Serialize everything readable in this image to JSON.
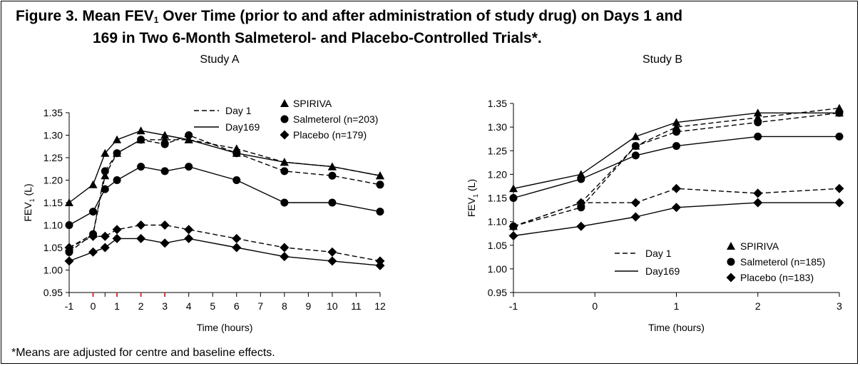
{
  "figure": {
    "title_prefix": "Figure 3. Mean FEV",
    "title_sub": "1",
    "title_line1_rest": " Over Time (prior to and after administration of study drug) on Days 1 and",
    "title_line2": "169 in Two 6-Month Salmeterol- and Placebo-Controlled Trials*.",
    "footnote": "*Means are adjusted for centre and baseline effects."
  },
  "chart_data": [
    {
      "type": "line",
      "title": "Study A",
      "xlabel": "Time (hours)",
      "ylabel": "FEV",
      "ylabel_sub": "1",
      "ylabel_unit": " (L)",
      "xlim": [
        -1,
        12
      ],
      "ylim": [
        0.95,
        1.35
      ],
      "x_ticks": [
        -1,
        0,
        1,
        2,
        3,
        4,
        5,
        6,
        7,
        8,
        9,
        10,
        11,
        12
      ],
      "y_ticks": [
        "0.95",
        "1.00",
        "1.05",
        "1.10",
        "1.15",
        "1.20",
        "1.25",
        "1.30",
        "1.35"
      ],
      "grid": false,
      "line_legend": [
        {
          "label": "Day 1",
          "style": "dashed"
        },
        {
          "label": "Day169",
          "style": "solid"
        }
      ],
      "marker_legend": [
        {
          "label": "SPIRIVA",
          "marker": "triangle"
        },
        {
          "label": "Salmeterol (n=203)",
          "marker": "circle"
        },
        {
          "label": "Placebo (n=179)",
          "marker": "diamond"
        }
      ],
      "series": [
        {
          "name": "SPIRIVA",
          "day": "Day 1",
          "style": "dashed",
          "marker": "triangle",
          "x": [
            -1,
            0,
            0.5,
            1,
            2,
            3,
            4,
            6,
            8,
            10,
            12
          ],
          "y": [
            1.05,
            1.08,
            1.21,
            1.26,
            1.29,
            1.29,
            1.29,
            1.27,
            1.24,
            1.23,
            1.21
          ]
        },
        {
          "name": "SPIRIVA",
          "day": "Day169",
          "style": "solid",
          "marker": "triangle",
          "x": [
            -1,
            0,
            0.5,
            1,
            2,
            3,
            4,
            6,
            8,
            10,
            12
          ],
          "y": [
            1.15,
            1.19,
            1.26,
            1.29,
            1.31,
            1.3,
            1.29,
            1.26,
            1.24,
            1.23,
            1.21
          ]
        },
        {
          "name": "Salmeterol (n=203)",
          "day": "Day 1",
          "style": "dashed",
          "marker": "circle",
          "x": [
            -1,
            0,
            0.5,
            1,
            2,
            3,
            4,
            6,
            8,
            10,
            12
          ],
          "y": [
            1.04,
            1.08,
            1.22,
            1.26,
            1.29,
            1.28,
            1.3,
            1.26,
            1.22,
            1.21,
            1.19
          ]
        },
        {
          "name": "Salmeterol (n=203)",
          "day": "Day169",
          "style": "solid",
          "marker": "circle",
          "x": [
            -1,
            0,
            0.5,
            1,
            2,
            3,
            4,
            6,
            8,
            10,
            12
          ],
          "y": [
            1.1,
            1.13,
            1.18,
            1.2,
            1.23,
            1.22,
            1.23,
            1.2,
            1.15,
            1.15,
            1.13
          ]
        },
        {
          "name": "Placebo (n=179)",
          "day": "Day 1",
          "style": "dashed",
          "marker": "diamond",
          "x": [
            -1,
            0,
            0.5,
            1,
            2,
            3,
            4,
            6,
            8,
            10,
            12
          ],
          "y": [
            1.05,
            1.075,
            1.075,
            1.09,
            1.1,
            1.1,
            1.09,
            1.07,
            1.05,
            1.04,
            1.02
          ]
        },
        {
          "name": "Placebo (n=179)",
          "day": "Day169",
          "style": "solid",
          "marker": "diamond",
          "x": [
            -1,
            0,
            0.5,
            1,
            2,
            3,
            4,
            6,
            8,
            10,
            12
          ],
          "y": [
            1.02,
            1.04,
            1.05,
            1.07,
            1.07,
            1.06,
            1.07,
            1.05,
            1.03,
            1.02,
            1.01
          ]
        }
      ]
    },
    {
      "type": "line",
      "title": "Study B",
      "xlabel": "Time (hours)",
      "ylabel": "FEV",
      "ylabel_sub": "1",
      "ylabel_unit": " (L)",
      "xlim": [
        -1,
        3
      ],
      "ylim": [
        0.95,
        1.35
      ],
      "x_ticks": [
        -1,
        0,
        1,
        2,
        3
      ],
      "y_ticks": [
        "0.95",
        "1.00",
        "1.05",
        "1.10",
        "1.15",
        "1.20",
        "1.25",
        "1.30",
        "1.35"
      ],
      "grid": false,
      "line_legend": [
        {
          "label": "Day 1",
          "style": "dashed"
        },
        {
          "label": "Day169",
          "style": "solid"
        }
      ],
      "marker_legend": [
        {
          "label": "SPIRIVA",
          "marker": "triangle"
        },
        {
          "label": "Salmeterol (n=185)",
          "marker": "circle"
        },
        {
          "label": "Placebo (n=183)",
          "marker": "diamond"
        }
      ],
      "series": [
        {
          "name": "SPIRIVA",
          "day": "Day 1",
          "style": "dashed",
          "marker": "triangle",
          "x": [
            -1,
            -0.17,
            0.5,
            1,
            2,
            3
          ],
          "y": [
            1.09,
            1.14,
            1.26,
            1.3,
            1.32,
            1.34
          ]
        },
        {
          "name": "SPIRIVA",
          "day": "Day169",
          "style": "solid",
          "marker": "triangle",
          "x": [
            -1,
            -0.17,
            0.5,
            1,
            2,
            3
          ],
          "y": [
            1.17,
            1.2,
            1.28,
            1.31,
            1.33,
            1.33
          ]
        },
        {
          "name": "Salmeterol (n=185)",
          "day": "Day 1",
          "style": "dashed",
          "marker": "circle",
          "x": [
            -1,
            -0.17,
            0.5,
            1,
            2,
            3
          ],
          "y": [
            1.09,
            1.13,
            1.26,
            1.29,
            1.31,
            1.33
          ]
        },
        {
          "name": "Salmeterol (n=185)",
          "day": "Day169",
          "style": "solid",
          "marker": "circle",
          "x": [
            -1,
            -0.17,
            0.5,
            1,
            2,
            3
          ],
          "y": [
            1.15,
            1.19,
            1.24,
            1.26,
            1.28,
            1.28
          ]
        },
        {
          "name": "Placebo (n=183)",
          "day": "Day 1",
          "style": "dashed",
          "marker": "diamond",
          "x": [
            -1,
            -0.17,
            0.5,
            1,
            2,
            3
          ],
          "y": [
            1.09,
            1.14,
            1.14,
            1.17,
            1.16,
            1.17
          ]
        },
        {
          "name": "Placebo (n=183)",
          "day": "Day169",
          "style": "solid",
          "marker": "diamond",
          "x": [
            -1,
            -0.17,
            0.5,
            1,
            2,
            3
          ],
          "y": [
            1.07,
            1.09,
            1.11,
            1.13,
            1.14,
            1.14
          ]
        }
      ]
    }
  ]
}
